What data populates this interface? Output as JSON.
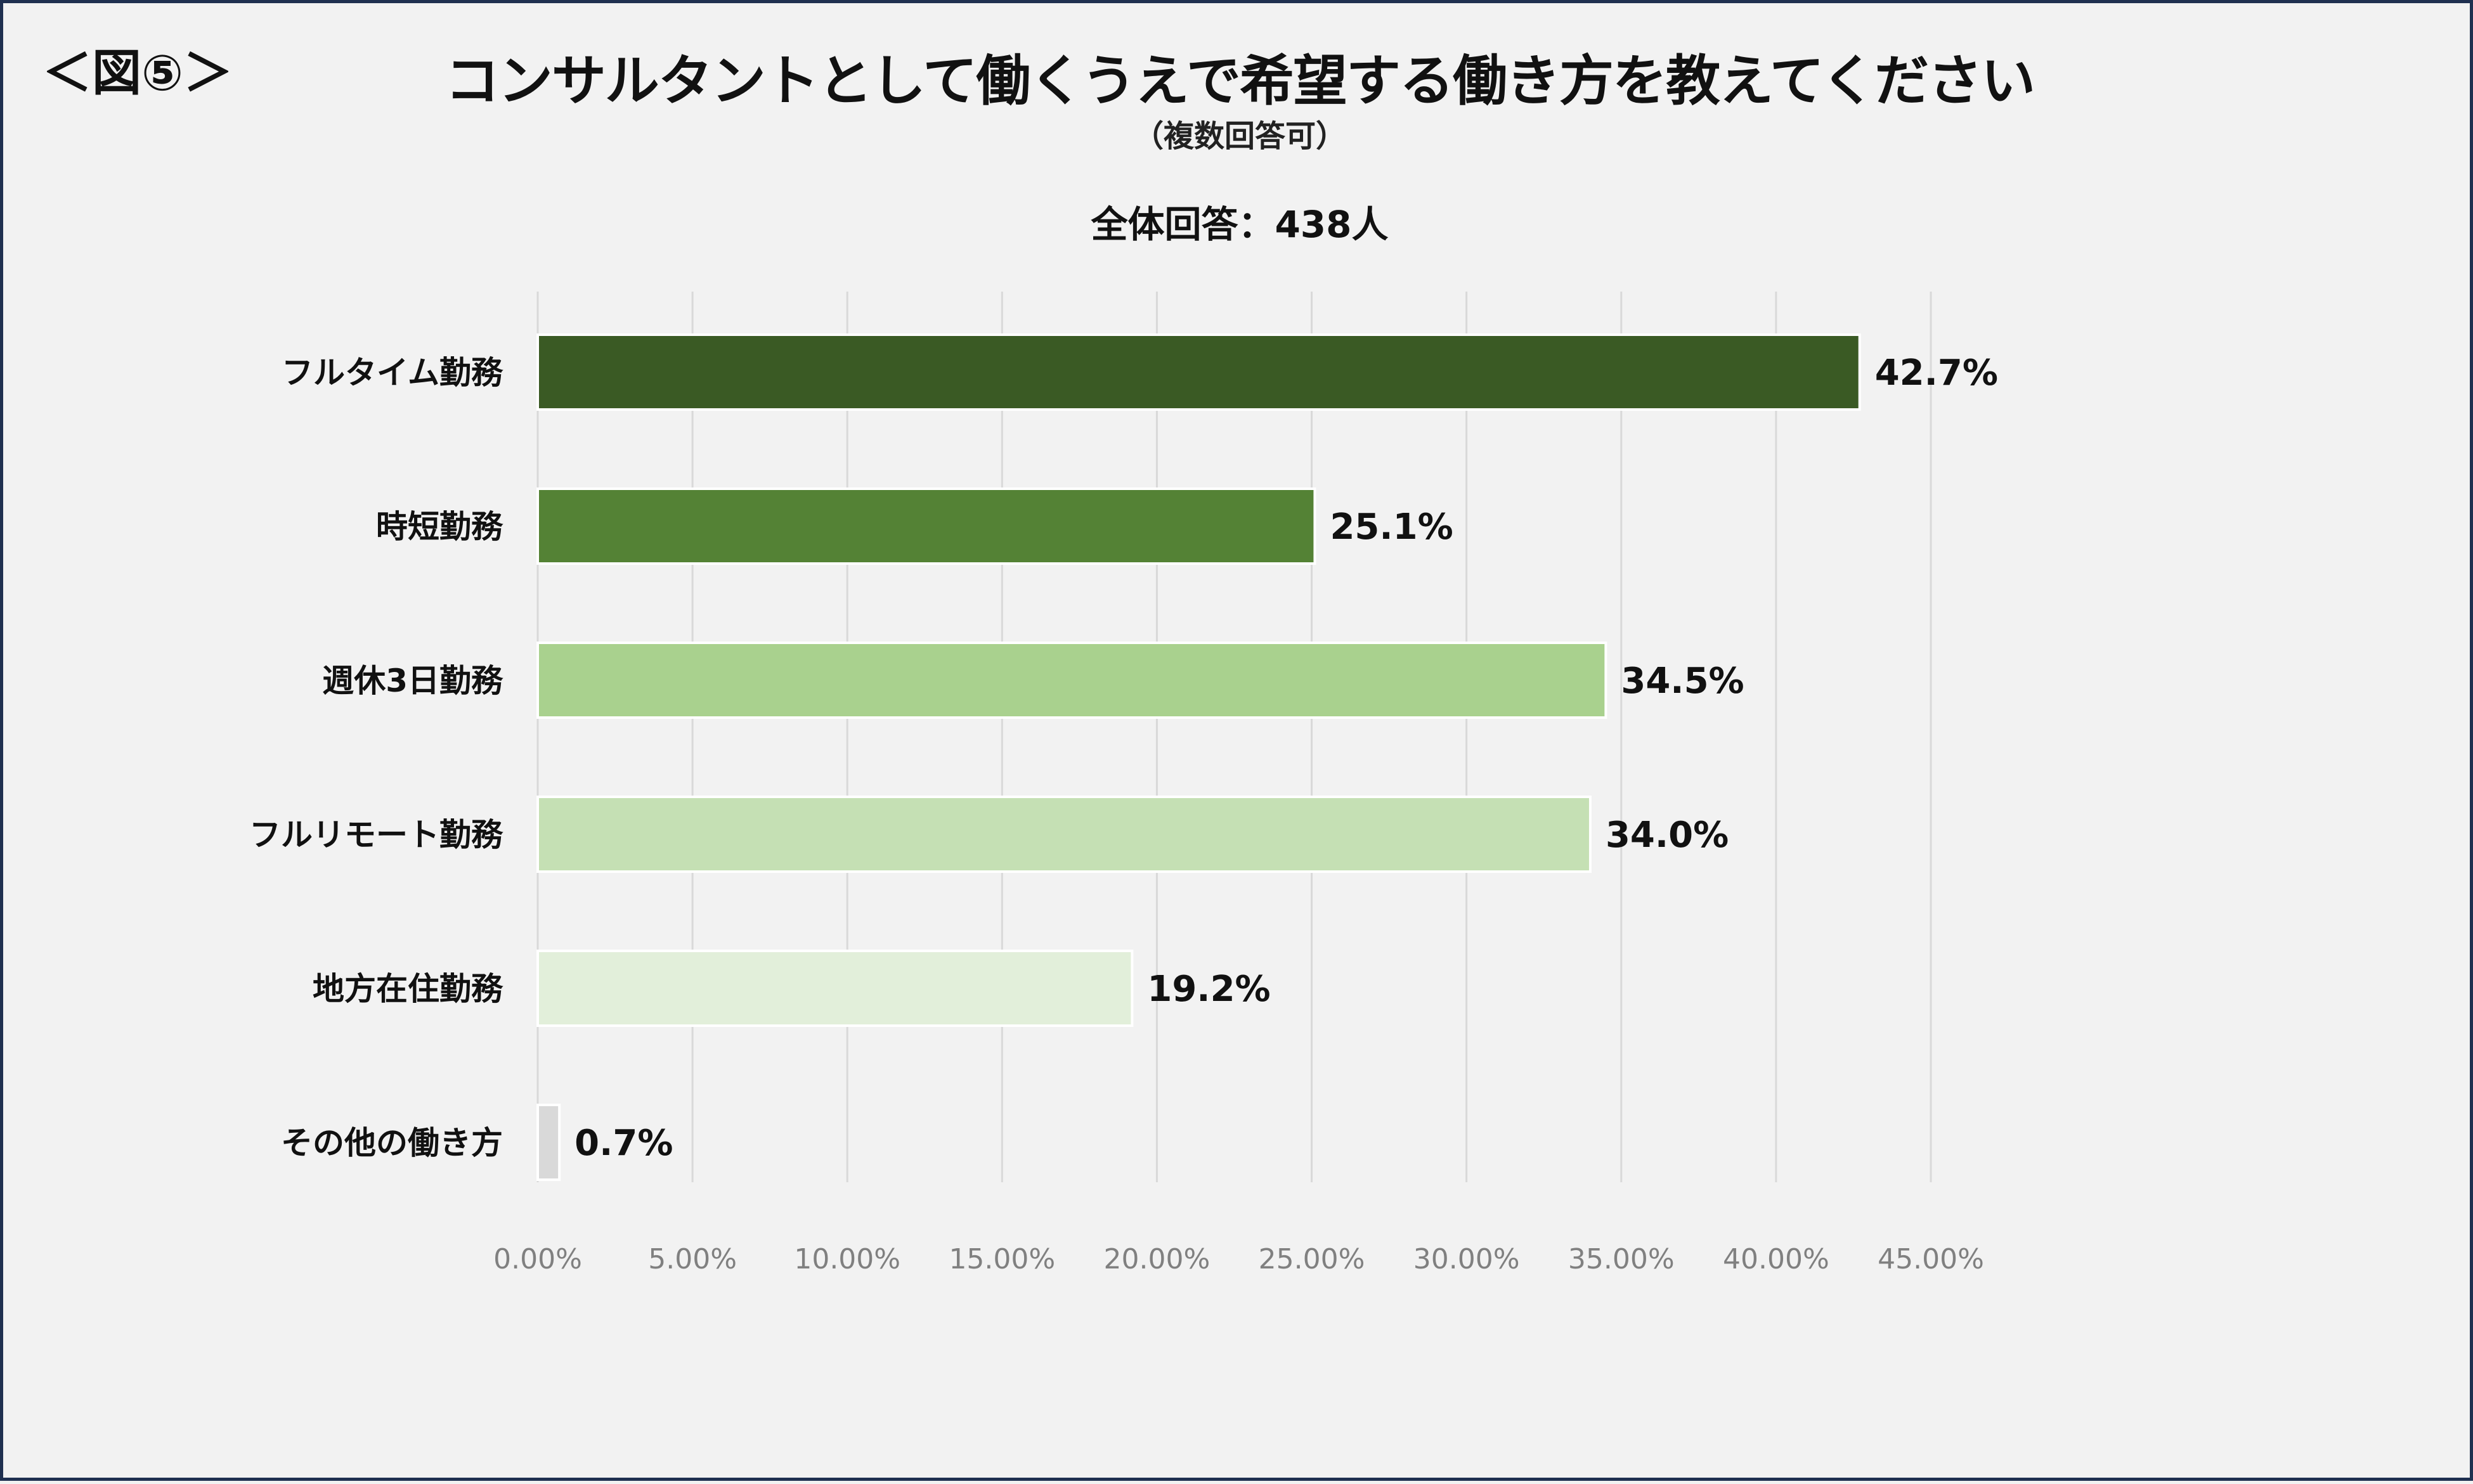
{
  "header": {
    "figure_label": "＜図⑤＞",
    "title": "コンサルタントとして働くうえで希望する働き方を教えてください",
    "subtitle": "（複数回答可）",
    "total_label": "全体回答：438人"
  },
  "chart_data": {
    "type": "bar",
    "orientation": "horizontal",
    "categories": [
      "フルタイム勤務",
      "時短勤務",
      "週休3日勤務",
      "フルリモート勤務",
      "地方在住勤務",
      "その他の働き方"
    ],
    "values": [
      42.7,
      25.1,
      34.5,
      34.0,
      19.2,
      0.7
    ],
    "value_labels": [
      "42.7%",
      "25.1%",
      "34.5%",
      "34.0%",
      "19.2%",
      "0.7%"
    ],
    "bar_colors": [
      "#3a5a24",
      "#548235",
      "#a9d18e",
      "#c5e0b4",
      "#e2efda",
      "#d9d9d9"
    ],
    "xlim": [
      0,
      45
    ],
    "x_ticks": [
      0,
      5,
      10,
      15,
      20,
      25,
      30,
      35,
      40,
      45
    ],
    "x_tick_labels": [
      "0.00%",
      "5.00%",
      "10.00%",
      "15.00%",
      "20.00%",
      "25.00%",
      "30.00%",
      "35.00%",
      "40.00%",
      "45.00%"
    ],
    "grid": "vertical",
    "legend": "none"
  }
}
